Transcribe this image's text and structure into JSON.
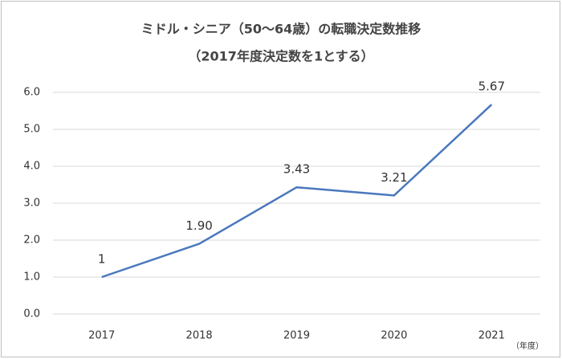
{
  "chart_data": {
    "type": "line",
    "title": "ミドル・シニア（50〜64歳）の転職決定数推移",
    "subtitle": "（2017年度決定数を1とする）",
    "x_unit_label": "（年度）",
    "categories": [
      "2017",
      "2018",
      "2019",
      "2020",
      "2021"
    ],
    "series": [
      {
        "name": "転職決定数",
        "color": "#4a78bd",
        "values": [
          1,
          1.9,
          3.43,
          3.21,
          5.67
        ],
        "value_labels": [
          "1",
          "1.90",
          "3.43",
          "3.21",
          "5.67"
        ]
      }
    ],
    "ylim": [
      0,
      6
    ],
    "yticks": [
      {
        "value": 0,
        "label": "0.0"
      },
      {
        "value": 1,
        "label": "1.0"
      },
      {
        "value": 2,
        "label": "2.0"
      },
      {
        "value": 3,
        "label": "3.0"
      },
      {
        "value": 4,
        "label": "4.0"
      },
      {
        "value": 5,
        "label": "5.0"
      },
      {
        "value": 6,
        "label": "6.0"
      }
    ],
    "grid": true
  }
}
